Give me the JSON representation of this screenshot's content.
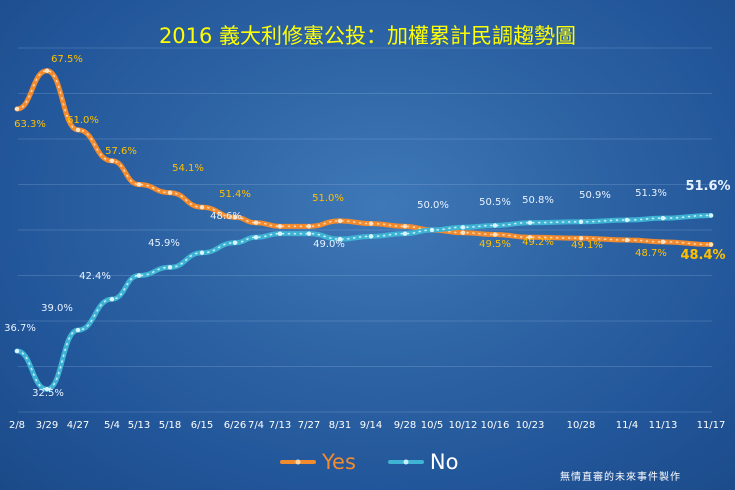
{
  "chart_data": {
    "type": "line",
    "title": "2016 義大利修憲公投：加權累計民調趨勢圖",
    "x": [
      "2/8",
      "3/29",
      "4/27",
      "5/4",
      "5/13",
      "5/18",
      "6/15",
      "6/26",
      "7/4",
      "7/13",
      "7/27",
      "8/31",
      "9/14",
      "9/28",
      "10/5",
      "10/12",
      "10/16",
      "10/23",
      "10/28",
      "11/4",
      "11/13",
      "11/17"
    ],
    "ylim": [
      30,
      70
    ],
    "grid": true,
    "legend_position": "bottom",
    "series": [
      {
        "name": "Yes",
        "color": "#f28a2e",
        "values": [
          63.3,
          67.5,
          61.0,
          57.6,
          55.0,
          54.1,
          52.5,
          51.4,
          50.8,
          50.4,
          50.4,
          51.0,
          50.7,
          50.4,
          50.0,
          49.7,
          49.5,
          49.2,
          49.1,
          48.9,
          48.7,
          48.4
        ]
      },
      {
        "name": "No",
        "color": "#3fb3d4",
        "values": [
          36.7,
          32.5,
          39.0,
          42.4,
          45.0,
          45.9,
          47.5,
          48.6,
          49.2,
          49.6,
          49.6,
          49.0,
          49.3,
          49.6,
          50.0,
          50.3,
          50.5,
          50.8,
          50.9,
          51.1,
          51.3,
          51.6
        ]
      }
    ],
    "data_labels": [
      {
        "series": "Yes",
        "text": "63.3%"
      },
      {
        "series": "Yes",
        "text": "67.5%"
      },
      {
        "series": "Yes",
        "text": "61.0%"
      },
      {
        "series": "Yes",
        "text": "57.6%"
      },
      {
        "series": "Yes",
        "text": "54.1%"
      },
      {
        "series": "Yes",
        "text": "51.4%"
      },
      {
        "series": "Yes",
        "text": "51.0%"
      },
      {
        "series": "Yes",
        "text": "49.5%"
      },
      {
        "series": "Yes",
        "text": "49.2%"
      },
      {
        "series": "Yes",
        "text": "49.1%"
      },
      {
        "series": "Yes",
        "text": "48.7%"
      },
      {
        "series": "Yes",
        "text": "48.4%"
      },
      {
        "series": "No",
        "text": "36.7%"
      },
      {
        "series": "No",
        "text": "32.5%"
      },
      {
        "series": "No",
        "text": "39.0%"
      },
      {
        "series": "No",
        "text": "42.4%"
      },
      {
        "series": "No",
        "text": "45.9%"
      },
      {
        "series": "No",
        "text": "48.6%"
      },
      {
        "series": "No",
        "text": "49.0%"
      },
      {
        "series": "No",
        "text": "50.0%"
      },
      {
        "series": "No",
        "text": "50.5%"
      },
      {
        "series": "No",
        "text": "50.8%"
      },
      {
        "series": "No",
        "text": "50.9%"
      },
      {
        "series": "No",
        "text": "51.3%"
      },
      {
        "series": "No",
        "text": "51.6%"
      }
    ]
  },
  "credit": "無情直審的未來事件製作",
  "colors": {
    "yes": "#f28a2e",
    "no": "#3fb3d4",
    "yes_label": "#ffc000",
    "no_label": "#e6f2ff",
    "title": "#ffff00"
  }
}
